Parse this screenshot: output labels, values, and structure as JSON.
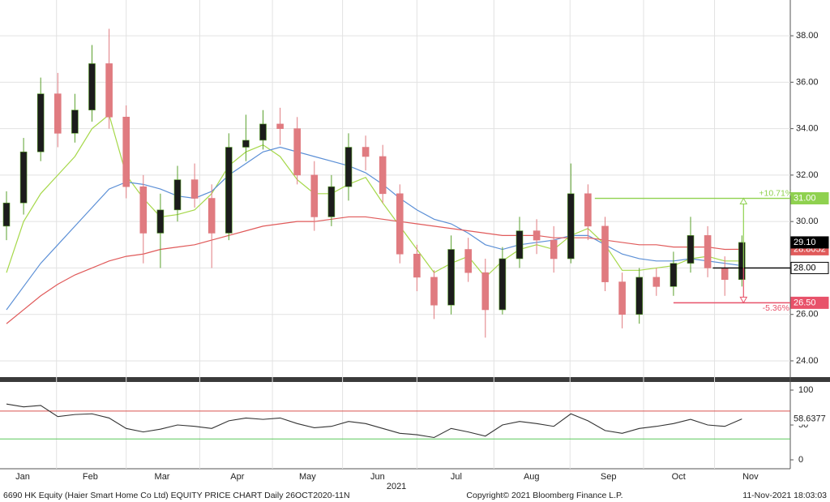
{
  "chart_data": [
    {
      "type": "candlestick",
      "open": [
        29.8,
        30.8,
        33.0,
        35.5,
        33.8,
        34.8,
        36.8,
        34.5,
        31.5,
        29.5,
        30.5,
        31.8,
        31.0,
        29.5,
        33.2,
        33.5,
        34.2,
        34.0,
        32.0,
        30.2,
        31.5,
        33.2,
        32.8,
        31.2,
        28.6,
        27.6,
        26.4,
        28.8,
        27.8,
        26.2,
        28.4,
        29.6,
        29.2,
        28.4,
        31.2,
        29.8,
        27.4,
        26.0,
        27.6,
        27.2,
        28.2,
        29.4,
        28.0,
        27.5
      ],
      "high": [
        31.3,
        33.6,
        36.2,
        36.4,
        35.5,
        37.6,
        38.3,
        35.0,
        32.0,
        31.2,
        32.4,
        32.5,
        31.6,
        33.8,
        34.6,
        34.8,
        34.9,
        34.5,
        32.6,
        32.0,
        33.8,
        33.7,
        33.3,
        31.6,
        29.0,
        27.9,
        29.4,
        29.3,
        28.4,
        28.9,
        30.2,
        30.1,
        29.8,
        32.5,
        31.6,
        30.2,
        27.8,
        28.0,
        28.0,
        28.7,
        30.2,
        29.8,
        28.5,
        29.4
      ],
      "low": [
        29.2,
        30.3,
        32.6,
        33.2,
        33.4,
        34.3,
        34.0,
        31.0,
        28.2,
        28.0,
        30.0,
        30.6,
        28.0,
        29.2,
        32.6,
        33.1,
        33.3,
        31.6,
        29.6,
        29.8,
        30.9,
        32.2,
        30.8,
        28.2,
        27.0,
        25.8,
        26.0,
        27.4,
        25.0,
        26.0,
        28.0,
        28.6,
        27.8,
        28.2,
        29.2,
        27.0,
        25.4,
        25.6,
        26.8,
        26.8,
        27.8,
        27.6,
        26.8,
        27.2
      ],
      "close": [
        30.8,
        33.0,
        35.5,
        33.8,
        34.8,
        36.8,
        34.5,
        31.5,
        29.5,
        30.5,
        31.8,
        31.0,
        29.5,
        33.2,
        33.5,
        34.2,
        34.0,
        32.0,
        30.2,
        31.5,
        33.2,
        32.8,
        31.2,
        28.6,
        27.6,
        26.4,
        28.8,
        27.8,
        26.2,
        28.4,
        29.6,
        29.2,
        28.4,
        31.2,
        29.8,
        27.4,
        26.0,
        27.6,
        27.2,
        28.2,
        29.4,
        28.0,
        27.5,
        29.1
      ],
      "up_color": "#1c1c1c",
      "down_color": "#e07b80",
      "up_edge": "#5aa02c",
      "last_close_label": "29.10",
      "overlays": [
        {
          "color": "#a6d84a",
          "values": [
            27.8,
            30.0,
            31.2,
            32.0,
            32.8,
            34.0,
            34.6,
            32.0,
            31.0,
            30.2,
            30.3,
            30.5,
            31.2,
            32.4,
            33.0,
            33.3,
            32.8,
            31.8,
            31.2,
            31.2,
            31.6,
            31.9,
            30.8,
            29.8,
            28.8,
            27.8,
            28.2,
            28.5,
            27.6,
            28.3,
            28.8,
            29.0,
            28.8,
            29.4,
            29.7,
            29.0,
            27.9,
            27.9,
            28.0,
            28.1,
            28.4,
            28.5,
            28.3,
            28.3
          ]
        },
        {
          "color": "#5b8fd6",
          "values": [
            26.2,
            27.2,
            28.2,
            29.0,
            29.8,
            30.6,
            31.4,
            31.7,
            31.6,
            31.4,
            31.1,
            31.0,
            31.3,
            32.0,
            32.5,
            33.0,
            33.2,
            33.0,
            32.8,
            32.6,
            32.4,
            32.1,
            31.6,
            31.0,
            30.5,
            30.1,
            29.9,
            29.5,
            29.0,
            28.8,
            29.0,
            29.1,
            29.2,
            29.4,
            29.4,
            29.0,
            28.6,
            28.4,
            28.3,
            28.3,
            28.4,
            28.3,
            28.2,
            28.1
          ]
        },
        {
          "color": "#e05a5a",
          "values": [
            25.6,
            26.2,
            26.8,
            27.3,
            27.7,
            28.0,
            28.3,
            28.5,
            28.6,
            28.8,
            28.9,
            29.0,
            29.2,
            29.4,
            29.6,
            29.8,
            29.9,
            30.0,
            30.0,
            30.1,
            30.2,
            30.2,
            30.1,
            30.0,
            29.9,
            29.8,
            29.7,
            29.6,
            29.5,
            29.4,
            29.4,
            29.4,
            29.3,
            29.3,
            29.3,
            29.2,
            29.1,
            29.0,
            29.0,
            28.9,
            28.9,
            28.9,
            28.8,
            28.8052
          ],
          "last_label": "28.8052"
        }
      ],
      "levels": [
        {
          "value": 31,
          "label": "31.00",
          "color": "#8fd14f",
          "start": 34.4
        },
        {
          "value": 28,
          "label": "28.00",
          "color": "#000000",
          "start": 41.3
        },
        {
          "value": 26.5,
          "label": "26.50",
          "color": "#e8526a",
          "start": 39
        }
      ],
      "annotations": [
        "+10.71%",
        "-5.36%"
      ],
      "ylim": [
        23.3,
        39.54
      ],
      "yticks": [
        {
          "value": 24,
          "label": "24.00"
        },
        {
          "value": 26,
          "label": "26.00"
        },
        {
          "value": 28,
          "label": "28.00"
        },
        {
          "value": 30,
          "label": "30.00"
        },
        {
          "value": 32,
          "label": "32.00"
        },
        {
          "value": 34,
          "label": "34.00"
        },
        {
          "value": 36,
          "label": "36.00"
        },
        {
          "value": 38,
          "label": "38.00"
        }
      ],
      "xticks": [
        {
          "value": 0.95,
          "label": "Jan"
        },
        {
          "value": 4.9,
          "label": "Feb"
        },
        {
          "value": 9.1,
          "label": "Mar"
        },
        {
          "value": 13.5,
          "label": "Apr"
        },
        {
          "value": 17.6,
          "label": "May"
        },
        {
          "value": 21.7,
          "label": "Jun"
        },
        {
          "value": 26.3,
          "label": "Jul"
        },
        {
          "value": 30.7,
          "label": "Aug"
        },
        {
          "value": 35.2,
          "label": "Sep"
        },
        {
          "value": 39.3,
          "label": "Oct"
        },
        {
          "value": 43.5,
          "label": "Nov"
        }
      ],
      "year_label": {
        "value": 22.8,
        "label": "2021"
      },
      "grid": true
    },
    {
      "type": "line",
      "values": [
        80,
        76,
        78,
        62,
        65,
        66,
        60,
        45,
        40,
        44,
        50,
        48,
        45,
        56,
        60,
        58,
        60,
        52,
        46,
        48,
        55,
        52,
        45,
        38,
        36,
        32,
        45,
        40,
        34,
        50,
        55,
        52,
        48,
        66,
        56,
        42,
        38,
        45,
        48,
        52,
        58,
        50,
        48,
        58.6377
      ],
      "color": "#333333",
      "last_label": "58.6377",
      "levels": [
        {
          "value": 70,
          "color": "#d9534f"
        },
        {
          "value": 30,
          "color": "#5cc85c"
        }
      ],
      "ylim": [
        -12.8,
        110.5
      ],
      "yticks": [
        0,
        50,
        100
      ]
    }
  ],
  "footer": {
    "left": "6690 HK Equity (Haier Smart Home Co Ltd) EQUITY PRICE CHART  Daily 26OCT2020-11N",
    "center": "Copyright© 2021 Bloomberg Finance L.P.",
    "right": "11-Nov-2021 18:03:03"
  }
}
